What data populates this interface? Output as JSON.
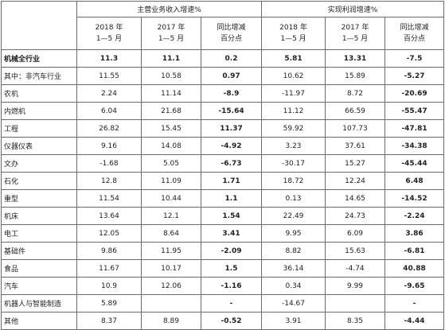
{
  "header": {
    "group1": "主营业务收入增速%",
    "group2": "实现利润增速%",
    "sub": [
      {
        "l1": "2018 年",
        "l2": "1—5 月"
      },
      {
        "l1": "2017 年",
        "l2": "1—5 月"
      },
      {
        "l1": "同比增减",
        "l2": "百分点"
      },
      {
        "l1": "2018 年",
        "l2": "1—5 月"
      },
      {
        "l1": "2017 年",
        "l2": "1—5 月"
      },
      {
        "l1": "同比增减",
        "l2": "百分点"
      }
    ]
  },
  "rows": [
    {
      "name": "机械全行业",
      "bold": true,
      "v": [
        "11.3",
        "11.1",
        "0.2",
        "5.81",
        "13.31",
        "-7.5"
      ]
    },
    {
      "name": "其中：非汽车行业",
      "v": [
        "11.55",
        "10.58",
        "0.97",
        "10.62",
        "15.89",
        "-5.27"
      ]
    },
    {
      "name": "农机",
      "v": [
        "2.24",
        "11.14",
        "-8.9",
        "-11.97",
        "8.72",
        "-20.69"
      ]
    },
    {
      "name": "内燃机",
      "v": [
        "6.04",
        "21.68",
        "-15.64",
        "11.12",
        "66.59",
        "-55.47"
      ]
    },
    {
      "name": "工程",
      "v": [
        "26.82",
        "15.45",
        "11.37",
        "59.92",
        "107.73",
        "-47.81"
      ]
    },
    {
      "name": "仪器仪表",
      "v": [
        "9.16",
        "14.08",
        "-4.92",
        "3.23",
        "37.61",
        "-34.38"
      ]
    },
    {
      "name": "文办",
      "v": [
        "-1.68",
        "5.05",
        "-6.73",
        "-30.17",
        "15.27",
        "-45.44"
      ]
    },
    {
      "name": "石化",
      "v": [
        "12.8",
        "11.09",
        "1.71",
        "18.72",
        "12.24",
        "6.48"
      ]
    },
    {
      "name": "重型",
      "v": [
        "11.54",
        "10.44",
        "1.1",
        "0.13",
        "14.65",
        "-14.52"
      ]
    },
    {
      "name": "机床",
      "v": [
        "13.64",
        "12.1",
        "1.54",
        "22.49",
        "24.73",
        "-2.24"
      ]
    },
    {
      "name": "电工",
      "v": [
        "12.05",
        "8.64",
        "3.41",
        "9.95",
        "6.09",
        "3.86"
      ]
    },
    {
      "name": "基础件",
      "v": [
        "9.86",
        "11.95",
        "-2.09",
        "8.82",
        "15.63",
        "-6.81"
      ]
    },
    {
      "name": "食品",
      "v": [
        "11.67",
        "10.17",
        "1.5",
        "36.14",
        "-4.74",
        "40.88"
      ]
    },
    {
      "name": "汽车",
      "v": [
        "10.9",
        "12.06",
        "-1.16",
        "0.34",
        "9.99",
        "-9.65"
      ]
    },
    {
      "name": "机器人与智能制造",
      "v": [
        "5.89",
        "",
        "-",
        "-14.67",
        "",
        "-"
      ]
    },
    {
      "name": "其他",
      "v": [
        "8.37",
        "8.89",
        "-0.52",
        "3.91",
        "8.35",
        "-4.44"
      ]
    }
  ]
}
